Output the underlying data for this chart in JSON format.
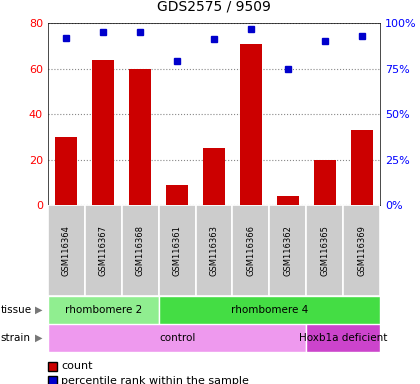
{
  "title": "GDS2575 / 9509",
  "samples": [
    "GSM116364",
    "GSM116367",
    "GSM116368",
    "GSM116361",
    "GSM116363",
    "GSM116366",
    "GSM116362",
    "GSM116365",
    "GSM116369"
  ],
  "counts": [
    30,
    64,
    60,
    9,
    25,
    71,
    4,
    20,
    33
  ],
  "percentiles": [
    92,
    95,
    95,
    79,
    91,
    97,
    75,
    90,
    93
  ],
  "bar_color": "#cc0000",
  "dot_color": "#0000cc",
  "ylim_left": [
    0,
    80
  ],
  "ylim_right": [
    0,
    100
  ],
  "yticks_left": [
    0,
    20,
    40,
    60,
    80
  ],
  "yticks_right": [
    0,
    25,
    50,
    75,
    100
  ],
  "ytick_labels_right": [
    "0%",
    "25%",
    "50%",
    "75%",
    "100%"
  ],
  "tissue_groups": [
    {
      "label": "rhombomere 2",
      "start": 0,
      "end": 3,
      "color": "#90ee90"
    },
    {
      "label": "rhombomere 4",
      "start": 3,
      "end": 9,
      "color": "#44dd44"
    }
  ],
  "strain_groups": [
    {
      "label": "control",
      "start": 0,
      "end": 7,
      "color": "#ee99ee"
    },
    {
      "label": "Hoxb1a deficient",
      "start": 7,
      "end": 9,
      "color": "#cc44cc"
    }
  ],
  "sample_bg": "#cccccc",
  "legend_count_color": "#cc0000",
  "legend_pct_color": "#0000cc",
  "legend_count_label": "count",
  "legend_pct_label": "percentile rank within the sample"
}
